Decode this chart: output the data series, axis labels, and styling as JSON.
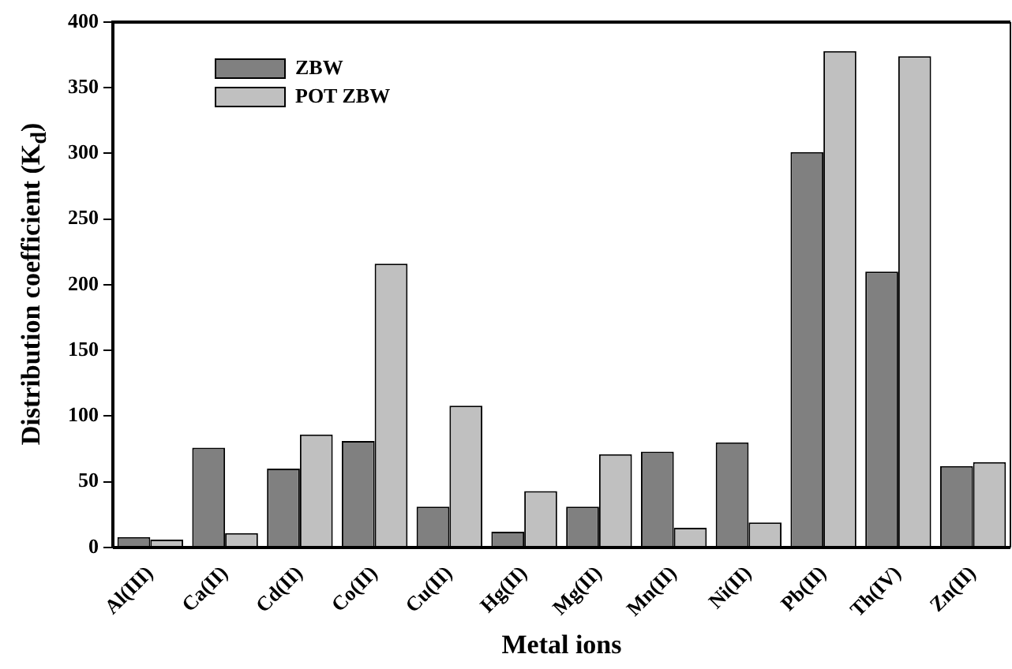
{
  "chart_data": {
    "type": "bar",
    "xlabel": "Metal ions",
    "ylabel": "Distribution coefficient (K$_{d}$)",
    "categories": [
      "Al(III)",
      "Ca(II)",
      "Cd(II)",
      "Co(II)",
      "Cu(II)",
      "Hg(II)",
      "Mg(II)",
      "Mn(II)",
      "Ni(II)",
      "Pb(II)",
      "Th(IV)",
      "Zn(II)"
    ],
    "series": [
      {
        "name": "ZBW",
        "color": "#808080",
        "values": [
          8,
          76,
          60,
          81,
          31,
          12,
          31,
          73,
          80,
          301,
          210,
          62
        ]
      },
      {
        "name": "POT ZBW",
        "color": "#c0c0c0",
        "values": [
          6,
          11,
          86,
          216,
          108,
          43,
          71,
          15,
          19,
          378,
          374,
          65
        ]
      }
    ],
    "ylim": [
      0,
      400
    ],
    "yticks": [
      0,
      50,
      100,
      150,
      200,
      250,
      300,
      350,
      400
    ],
    "grid": false,
    "legend": "top left"
  }
}
